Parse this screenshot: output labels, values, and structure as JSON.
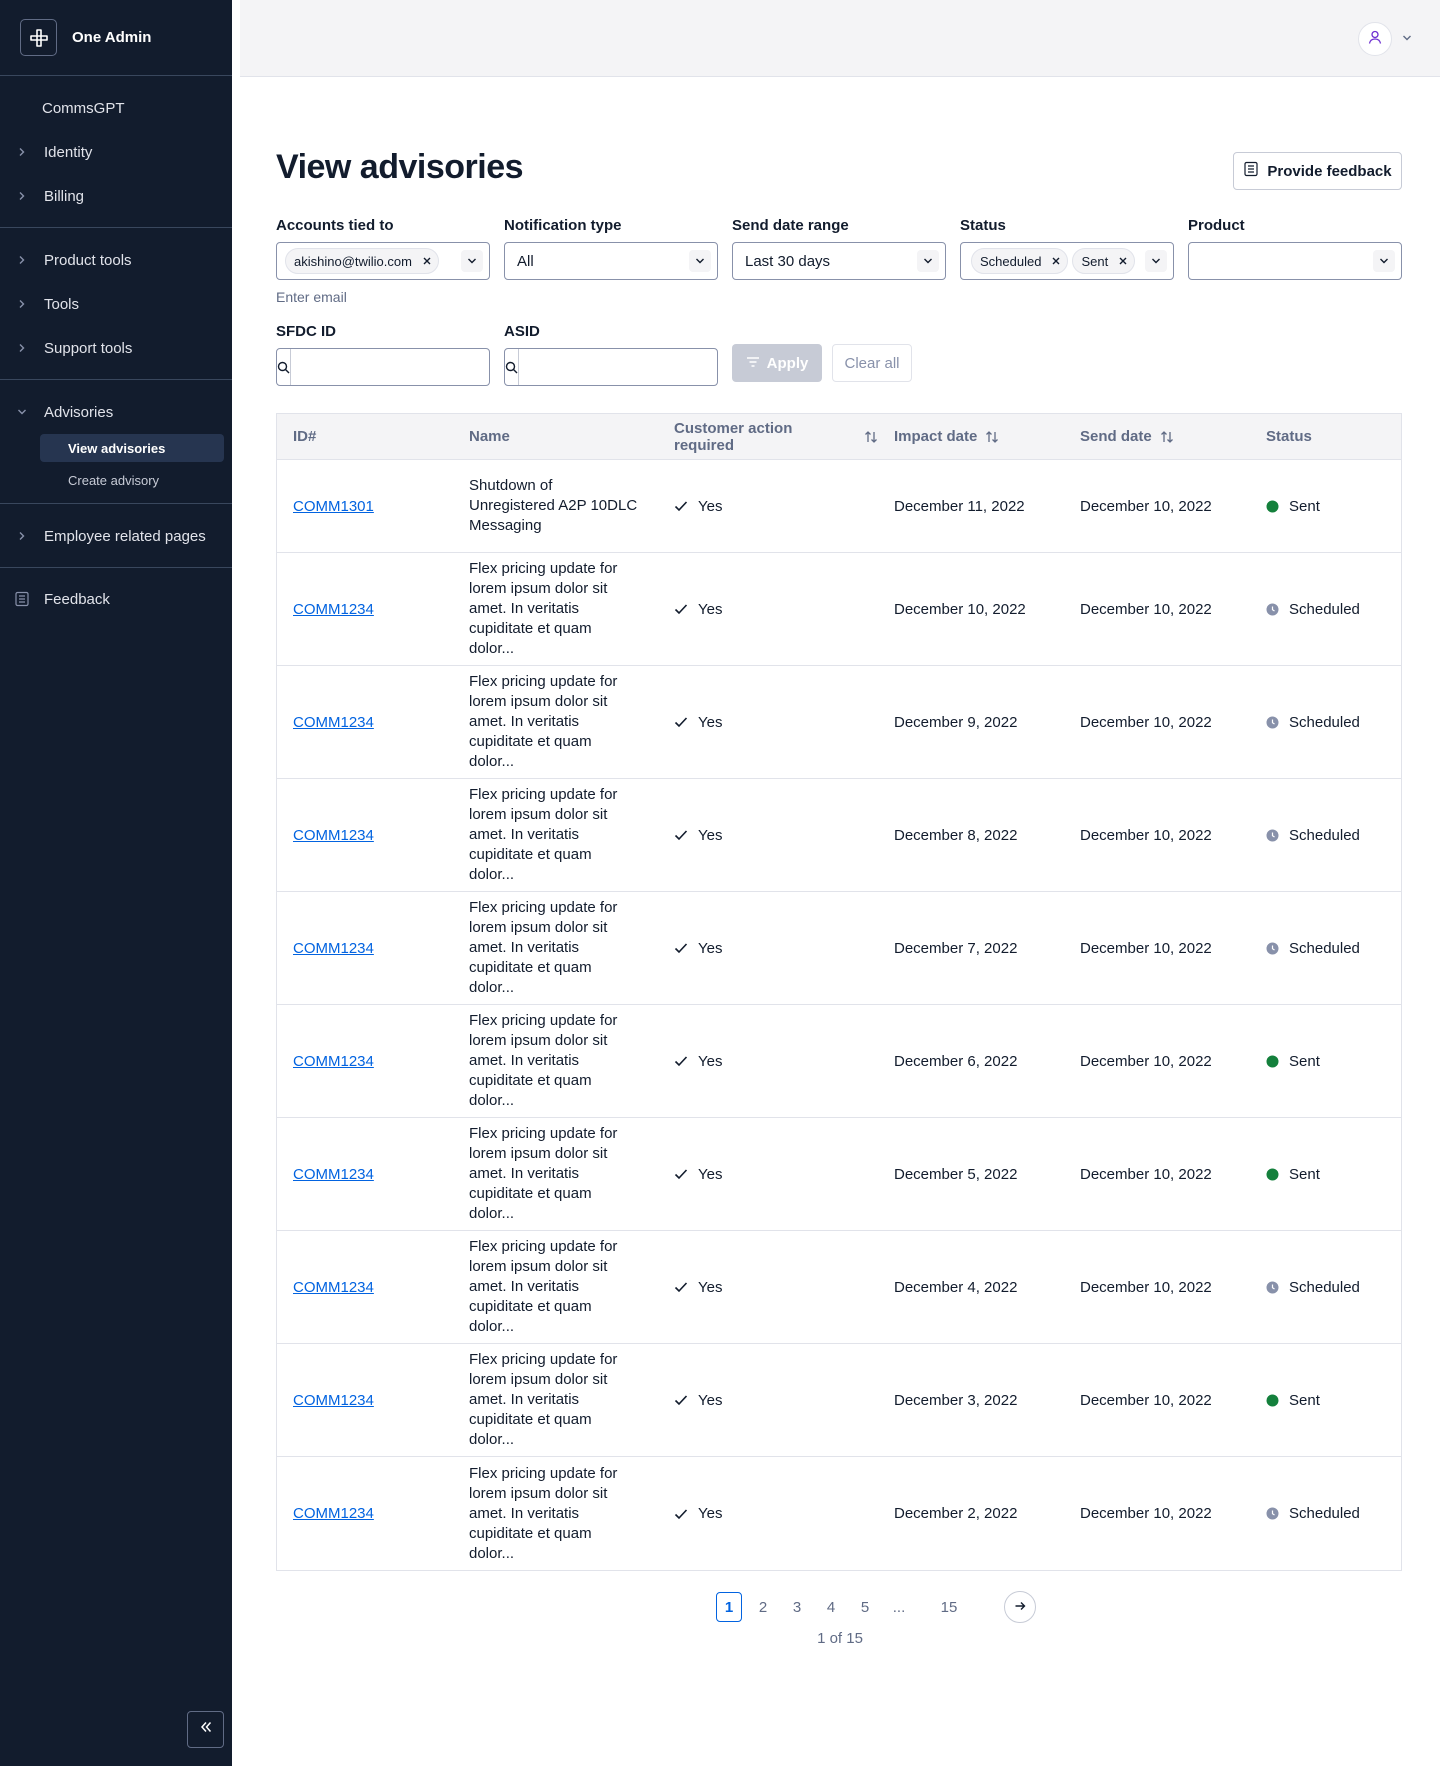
{
  "app": {
    "name": "One Admin"
  },
  "sidebar": {
    "commsgpt": "CommsGPT",
    "group1": [
      "Identity",
      "Billing"
    ],
    "group2": [
      "Product tools",
      "Tools",
      "Support tools"
    ],
    "advisories": {
      "label": "Advisories",
      "children": [
        "View advisories",
        "Create advisory"
      ]
    },
    "employee": "Employee related pages",
    "feedback": "Feedback"
  },
  "page": {
    "title": "View advisories",
    "feedback_button": "Provide feedback"
  },
  "filters": {
    "accounts": {
      "label": "Accounts tied to",
      "chip": "akishino@twilio.com",
      "help": "Enter email"
    },
    "notification_type": {
      "label": "Notification type",
      "value": "All"
    },
    "send_date_range": {
      "label": "Send date range",
      "value": "Last 30 days"
    },
    "status": {
      "label": "Status",
      "chips": [
        "Scheduled",
        "Sent"
      ]
    },
    "product": {
      "label": "Product",
      "value": ""
    },
    "sfdc": {
      "label": "SFDC ID",
      "value": ""
    },
    "asid": {
      "label": "ASID",
      "value": ""
    },
    "apply": "Apply",
    "clear": "Clear all"
  },
  "table": {
    "headers": [
      "ID#",
      "Name",
      "Customer action required",
      "Impact date",
      "Send date",
      "Status"
    ],
    "rows": [
      {
        "id": "COMM1301",
        "name": "Shutdown of Unregistered A2P 10DLC Messaging",
        "action": "Yes",
        "impact": "December 11, 2022",
        "send": "December 10, 2022",
        "status": "Sent"
      },
      {
        "id": "COMM1234",
        "name": "Flex pricing update for lorem ipsum dolor sit amet. In veritatis cupiditate et quam dolor...",
        "action": "Yes",
        "impact": "December 10, 2022",
        "send": "December 10, 2022",
        "status": "Scheduled"
      },
      {
        "id": "COMM1234",
        "name": "Flex pricing update for lorem ipsum dolor sit amet. In veritatis cupiditate et quam dolor...",
        "action": "Yes",
        "impact": "December 9, 2022",
        "send": "December 10, 2022",
        "status": "Scheduled"
      },
      {
        "id": "COMM1234",
        "name": "Flex pricing update for lorem ipsum dolor sit amet. In veritatis cupiditate et quam dolor...",
        "action": "Yes",
        "impact": "December 8, 2022",
        "send": "December 10, 2022",
        "status": "Scheduled"
      },
      {
        "id": "COMM1234",
        "name": "Flex pricing update for lorem ipsum dolor sit amet. In veritatis cupiditate et quam dolor...",
        "action": "Yes",
        "impact": "December 7, 2022",
        "send": "December 10, 2022",
        "status": "Scheduled"
      },
      {
        "id": "COMM1234",
        "name": "Flex pricing update for lorem ipsum dolor sit amet. In veritatis cupiditate et quam dolor...",
        "action": "Yes",
        "impact": "December 6, 2022",
        "send": "December 10, 2022",
        "status": "Sent"
      },
      {
        "id": "COMM1234",
        "name": "Flex pricing update for lorem ipsum dolor sit amet. In veritatis cupiditate et quam dolor...",
        "action": "Yes",
        "impact": "December 5, 2022",
        "send": "December 10, 2022",
        "status": "Sent"
      },
      {
        "id": "COMM1234",
        "name": "Flex pricing update for lorem ipsum dolor sit amet. In veritatis cupiditate et quam dolor...",
        "action": "Yes",
        "impact": "December 4, 2022",
        "send": "December 10, 2022",
        "status": "Scheduled"
      },
      {
        "id": "COMM1234",
        "name": "Flex pricing update for lorem ipsum dolor sit amet. In veritatis cupiditate et quam dolor...",
        "action": "Yes",
        "impact": "December 3, 2022",
        "send": "December 10, 2022",
        "status": "Sent"
      },
      {
        "id": "COMM1234",
        "name": "Flex pricing update for lorem ipsum dolor sit amet. In veritatis cupiditate et quam dolor...",
        "action": "Yes",
        "impact": "December 2, 2022",
        "send": "December 10, 2022",
        "status": "Scheduled"
      }
    ]
  },
  "pagination": {
    "pages": [
      "1",
      "2",
      "3",
      "4",
      "5"
    ],
    "ellipsis": "...",
    "last": "15",
    "current": "1",
    "summary": "1 of 15"
  },
  "colors": {
    "sidebar_bg": "#121c2d",
    "link": "#0263e0",
    "sent": "#14803c",
    "scheduled": "#8891aa"
  },
  "icons": [
    "logo-icon",
    "chevron-right-icon",
    "chevron-down-icon",
    "feedback-icon",
    "collapse-icon",
    "user-icon",
    "search-icon",
    "filter-icon",
    "close-icon",
    "sort-icon",
    "check-icon",
    "arrow-right-icon"
  ]
}
